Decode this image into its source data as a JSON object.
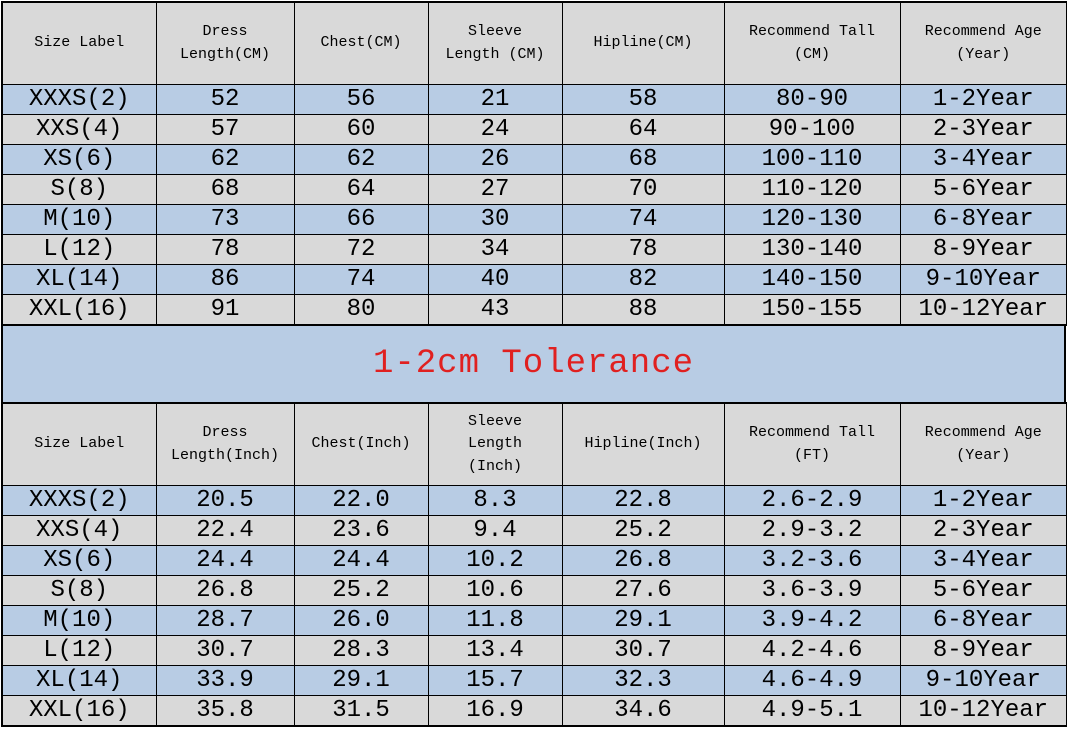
{
  "colors": {
    "row_blue": "#b8cce4",
    "row_gray": "#d9d9d9",
    "header_bg": "#d9d9d9",
    "banner_bg": "#b8cce4",
    "banner_text": "#e02020",
    "border": "#000000",
    "text": "#000000",
    "page_bg": "#ffffff"
  },
  "banner": {
    "text": "1-2cm Tolerance"
  },
  "chart_data": [
    {
      "type": "table",
      "name": "size-chart-cm",
      "columns": [
        "Size Label",
        "Dress Length(CM)",
        "Chest(CM)",
        "Sleeve Length (CM)",
        "Hipline(CM)",
        "Recommend Tall (CM)",
        "Recommend Age (Year)"
      ],
      "display_headers": [
        "Size Label",
        "Dress\nLength(CM)",
        "Chest(CM)",
        "Sleeve\nLength (CM)",
        "Hipline(CM)",
        "Recommend Tall\n(CM)",
        "Recommend Age\n(Year)"
      ],
      "rows": [
        [
          "XXXS(2)",
          "52",
          "56",
          "21",
          "58",
          "80-90",
          "1-2Year"
        ],
        [
          "XXS(4)",
          "57",
          "60",
          "24",
          "64",
          "90-100",
          "2-3Year"
        ],
        [
          "XS(6)",
          "62",
          "62",
          "26",
          "68",
          "100-110",
          "3-4Year"
        ],
        [
          "S(8)",
          "68",
          "64",
          "27",
          "70",
          "110-120",
          "5-6Year"
        ],
        [
          "M(10)",
          "73",
          "66",
          "30",
          "74",
          "120-130",
          "6-8Year"
        ],
        [
          "L(12)",
          "78",
          "72",
          "34",
          "78",
          "130-140",
          "8-9Year"
        ],
        [
          "XL(14)",
          "86",
          "74",
          "40",
          "82",
          "140-150",
          "9-10Year"
        ],
        [
          "XXL(16)",
          "91",
          "80",
          "43",
          "88",
          "150-155",
          "10-12Year"
        ]
      ]
    },
    {
      "type": "table",
      "name": "size-chart-inch",
      "columns": [
        "Size Label",
        "Dress Length(Inch)",
        "Chest(Inch)",
        "Sleeve Length (Inch)",
        "Hipline(Inch)",
        "Recommend Tall (FT)",
        "Recommend Age (Year)"
      ],
      "display_headers": [
        "Size Label",
        "Dress\nLength(Inch)",
        "Chest(Inch)",
        "Sleeve\nLength\n(Inch)",
        "Hipline(Inch)",
        "Recommend Tall\n(FT)",
        "Recommend Age\n(Year)"
      ],
      "rows": [
        [
          "XXXS(2)",
          "20.5",
          "22.0",
          "8.3",
          "22.8",
          "2.6-2.9",
          "1-2Year"
        ],
        [
          "XXS(4)",
          "22.4",
          "23.6",
          "9.4",
          "25.2",
          "2.9-3.2",
          "2-3Year"
        ],
        [
          "XS(6)",
          "24.4",
          "24.4",
          "10.2",
          "26.8",
          "3.2-3.6",
          "3-4Year"
        ],
        [
          "S(8)",
          "26.8",
          "25.2",
          "10.6",
          "27.6",
          "3.6-3.9",
          "5-6Year"
        ],
        [
          "M(10)",
          "28.7",
          "26.0",
          "11.8",
          "29.1",
          "3.9-4.2",
          "6-8Year"
        ],
        [
          "L(12)",
          "30.7",
          "28.3",
          "13.4",
          "30.7",
          "4.2-4.6",
          "8-9Year"
        ],
        [
          "XL(14)",
          "33.9",
          "29.1",
          "15.7",
          "32.3",
          "4.6-4.9",
          "9-10Year"
        ],
        [
          "XXL(16)",
          "35.8",
          "31.5",
          "16.9",
          "34.6",
          "4.9-5.1",
          "10-12Year"
        ]
      ]
    }
  ]
}
